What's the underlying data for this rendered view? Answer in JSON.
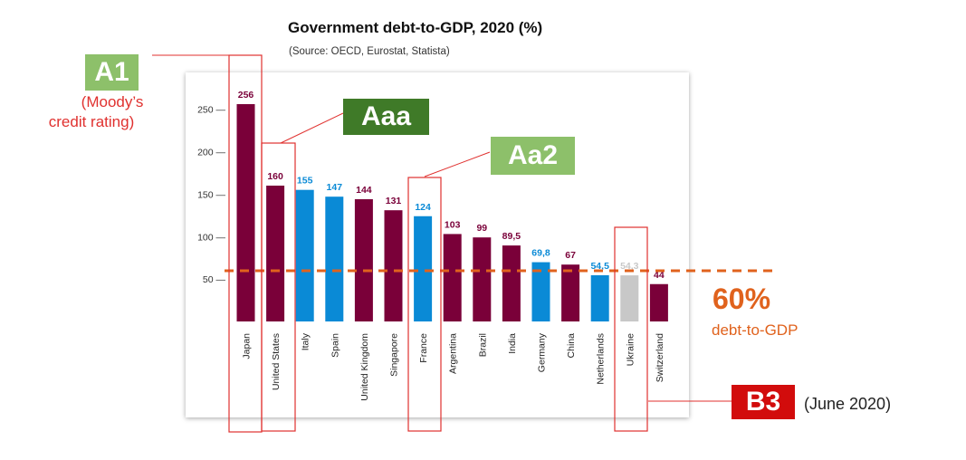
{
  "chart_data": {
    "type": "bar",
    "title": "Government debt-to-GDP, 2020 (%)",
    "subtitle": "(Source: OECD,  Eurostat, Statista)",
    "categories": [
      "Japan",
      "United States",
      "Italy",
      "Spain",
      "United Kingdom",
      "Singapore",
      "France",
      "Argentina",
      "Brazil",
      "India",
      "Germany",
      "China",
      "Netherlands",
      "Ukraine",
      "Switzerland"
    ],
    "values": [
      256,
      160,
      155,
      147,
      144,
      131,
      124,
      103,
      99,
      89.5,
      69.8,
      67,
      54.5,
      54.3,
      44
    ],
    "value_labels": [
      "256",
      "160",
      "155",
      "147",
      "144",
      "131",
      "124",
      "103",
      "99",
      "89,5",
      "69,8",
      "67",
      "54,5",
      "54,3",
      "44"
    ],
    "bar_colors": [
      "#7a0039",
      "#7a0039",
      "#0a8ad6",
      "#0a8ad6",
      "#7a0039",
      "#7a0039",
      "#0a8ad6",
      "#7a0039",
      "#7a0039",
      "#7a0039",
      "#0a8ad6",
      "#7a0039",
      "#0a8ad6",
      "#c8c8c8",
      "#7a0039"
    ],
    "yticks": [
      50,
      100,
      150,
      200,
      250
    ],
    "ytick_labels": [
      "50 —",
      "100 —",
      "150 —",
      "200 —",
      "250 —"
    ],
    "ylim": [
      0,
      270
    ],
    "reference_line": {
      "value": 60,
      "color": "#e0621d"
    },
    "grid": false
  },
  "annotations": {
    "a1": {
      "label": "A1",
      "note_line1": "(Moody’s",
      "note_line2": "credit rating)",
      "color": "#8dc06a",
      "note_color": "#e0312f"
    },
    "aaa": {
      "label": "Aaa",
      "color": "#3f7a28"
    },
    "aa2": {
      "label": "Aa2",
      "color": "#8dc06a"
    },
    "b3": {
      "label": "B3",
      "note": "(June 2020)",
      "color": "#d20c0c"
    },
    "threshold": {
      "value_label": "60%",
      "sub_label": "debt-to-GDP",
      "color": "#e0621d"
    }
  }
}
